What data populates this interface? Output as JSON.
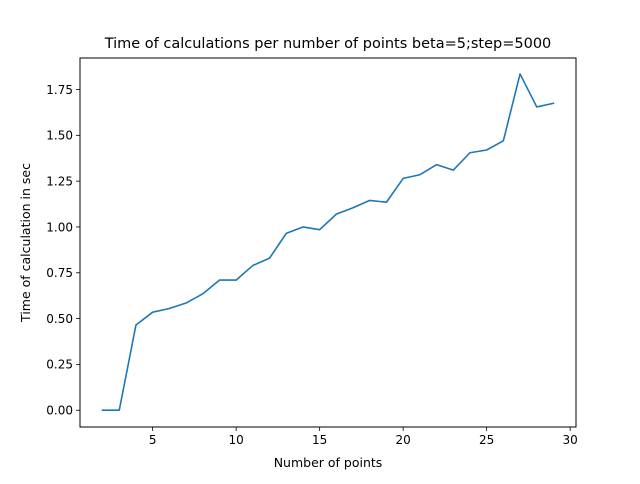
{
  "chart_data": {
    "type": "line",
    "title": "Time of calculations per number of points beta=5;step=5000",
    "xlabel": "Number of points",
    "ylabel": "Time of calculation in sec",
    "xlim": [
      0.65,
      30.35
    ],
    "ylim": [
      -0.0915,
      1.922
    ],
    "x_ticks": [
      5,
      10,
      15,
      20,
      25,
      30
    ],
    "x_tick_labels": [
      "5",
      "10",
      "15",
      "20",
      "25",
      "30"
    ],
    "y_ticks": [
      0.0,
      0.25,
      0.5,
      0.75,
      1.0,
      1.25,
      1.5,
      1.75
    ],
    "y_tick_labels": [
      "0.00",
      "0.25",
      "0.50",
      "0.75",
      "1.00",
      "1.25",
      "1.50",
      "1.75"
    ],
    "grid": false,
    "series": [
      {
        "color": "#1f77b4",
        "x": [
          2,
          3,
          4,
          5,
          6,
          7,
          8,
          9,
          10,
          11,
          12,
          13,
          14,
          15,
          16,
          17,
          18,
          19,
          20,
          21,
          22,
          23,
          24,
          25,
          26,
          27,
          28,
          29
        ],
        "y": [
          0.0,
          0.0,
          0.465,
          0.535,
          0.555,
          0.585,
          0.635,
          0.71,
          0.71,
          0.79,
          0.83,
          0.965,
          1.0,
          0.985,
          1.07,
          1.105,
          1.145,
          1.135,
          1.265,
          1.285,
          1.34,
          1.31,
          1.405,
          1.42,
          1.47,
          1.835,
          1.655,
          1.675
        ]
      }
    ]
  }
}
